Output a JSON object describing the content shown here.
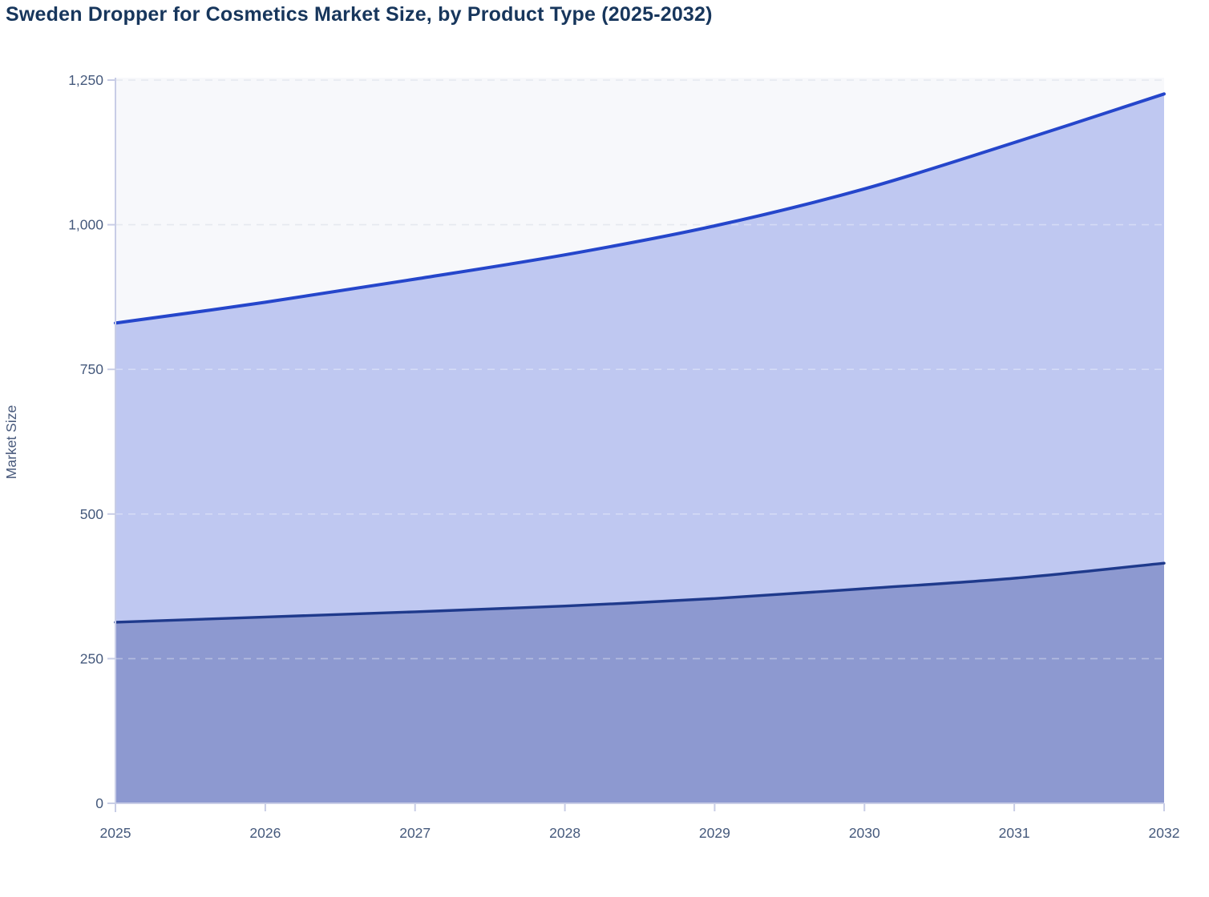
{
  "chart_data": {
    "type": "area",
    "stacked": true,
    "title": "Sweden Dropper for Cosmetics Market Size, by Product Type (2025-2032)",
    "xlabel": "",
    "ylabel": "Market Size",
    "x": [
      2025,
      2026,
      2027,
      2028,
      2029,
      2030,
      2031,
      2032
    ],
    "xtick_labels": [
      "2025",
      "2026",
      "2027",
      "2028",
      "2029",
      "2030",
      "2031",
      "2032"
    ],
    "series": [
      {
        "id": "product-type-bottom-band",
        "line_color": "#1f3a8c",
        "fill_color": "#8d99d0",
        "values": [
          313,
          322,
          331,
          341,
          354,
          371,
          389,
          415
        ]
      },
      {
        "id": "product-type-top-band",
        "line_color": "#2546cb",
        "fill_color": "#bfc8f1",
        "values": [
          517,
          544,
          575,
          607,
          644,
          691,
          753,
          811
        ]
      }
    ],
    "stacked_totals": [
      830,
      866,
      906,
      948,
      998,
      1062,
      1142,
      1226
    ],
    "ylim": [
      0,
      1250
    ],
    "yticks": [
      0,
      250,
      500,
      750,
      1000,
      1250
    ],
    "ytick_labels": [
      "0",
      "250",
      "500",
      "750",
      "1,000",
      "1,250"
    ],
    "grid": "horizontal dashed",
    "legend": "none"
  },
  "colors": {
    "title": "#17365c",
    "axis_label": "#4a5b7d",
    "tick_label": "#45597c",
    "gridline": "#d9dde8",
    "gridline_over_fill": "rgba(255,255,255,0.35)",
    "axis_line": "#c8cde6",
    "plot_background": "#f7f8fb",
    "page_background": "#ffffff"
  }
}
